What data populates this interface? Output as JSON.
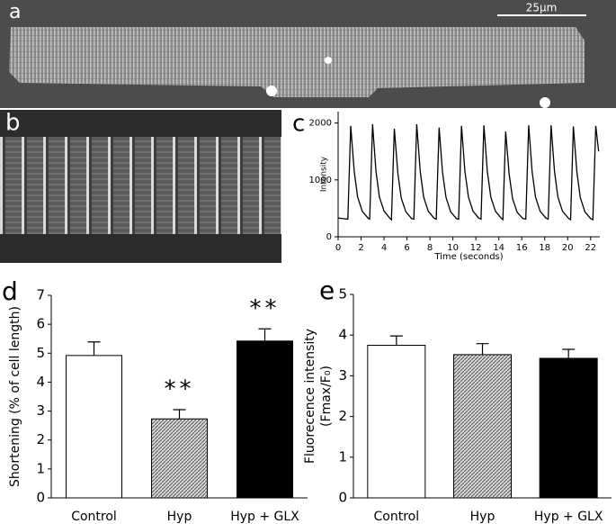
{
  "panels": {
    "a": {
      "label": "a",
      "scale_bar": "25µm"
    },
    "b": {
      "label": "b"
    }
  },
  "chart_data": [
    {
      "panel_label": "c",
      "type": "line",
      "x_label": "Time (seconds)",
      "y_label": "Intensity",
      "color": "#000000",
      "xlim": [
        0,
        22.8
      ],
      "ylim": [
        0,
        2200
      ],
      "xticks": [
        0,
        2,
        4,
        6,
        8,
        10,
        12,
        14,
        16,
        18,
        20,
        22
      ],
      "yticks": [
        0,
        1000,
        2000
      ],
      "x": [
        0,
        0.85,
        1.1,
        1.4,
        1.7,
        2.1,
        2.6,
        2.75,
        3.0,
        3.3,
        3.6,
        4.0,
        4.5,
        4.65,
        4.9,
        5.2,
        5.5,
        5.9,
        6.4,
        6.6,
        6.85,
        7.15,
        7.45,
        7.85,
        8.35,
        8.55,
        8.8,
        9.1,
        9.4,
        9.8,
        10.3,
        10.5,
        10.75,
        11.05,
        11.35,
        11.75,
        12.25,
        12.45,
        12.7,
        13.0,
        13.3,
        13.7,
        14.2,
        14.35,
        14.6,
        14.9,
        15.2,
        15.6,
        16.1,
        16.35,
        16.6,
        16.9,
        17.2,
        17.6,
        18.1,
        18.3,
        18.55,
        18.85,
        19.15,
        19.55,
        20.05,
        20.25,
        20.5,
        20.8,
        21.1,
        21.5,
        22.0,
        22.2,
        22.45,
        22.7
      ],
      "values": [
        330,
        310,
        1950,
        1150,
        700,
        450,
        330,
        310,
        1980,
        1150,
        700,
        450,
        330,
        300,
        1900,
        1120,
        680,
        440,
        320,
        310,
        1980,
        1150,
        700,
        450,
        330,
        310,
        1920,
        1130,
        690,
        440,
        320,
        310,
        1950,
        1150,
        700,
        450,
        330,
        310,
        1960,
        1150,
        700,
        450,
        330,
        300,
        1850,
        1100,
        670,
        430,
        320,
        310,
        1960,
        1150,
        700,
        450,
        330,
        310,
        1960,
        1150,
        700,
        450,
        330,
        300,
        1940,
        1140,
        690,
        440,
        320,
        300,
        1950,
        1500
      ]
    },
    {
      "panel_label": "d",
      "type": "bar",
      "y_label": "Shortening (% of cell length)",
      "categories": [
        "Control",
        "Hyp",
        "Hyp + GLX"
      ],
      "values": [
        4.92,
        2.73,
        5.42
      ],
      "errors": [
        0.47,
        0.32,
        0.42
      ],
      "colors": [
        "#ffffff",
        "#b0b0b0",
        "#000000"
      ],
      "hatch": [
        false,
        true,
        false
      ],
      "annotations": [
        null,
        "**",
        "**"
      ],
      "ylim": [
        0,
        7
      ],
      "yticks": [
        0,
        1,
        2,
        3,
        4,
        5,
        6,
        7
      ]
    },
    {
      "panel_label": "e",
      "type": "bar",
      "y_label": [
        "Fluorecence intensity",
        "(Fmax/F₀)"
      ],
      "categories": [
        "Control",
        "Hyp",
        "Hyp + GLX"
      ],
      "values": [
        3.75,
        3.52,
        3.43
      ],
      "errors": [
        0.23,
        0.27,
        0.22
      ],
      "colors": [
        "#ffffff",
        "#b0b0b0",
        "#000000"
      ],
      "hatch": [
        false,
        true,
        false
      ],
      "ylim": [
        0,
        5
      ],
      "yticks": [
        0,
        1,
        2,
        3,
        4,
        5
      ]
    }
  ]
}
